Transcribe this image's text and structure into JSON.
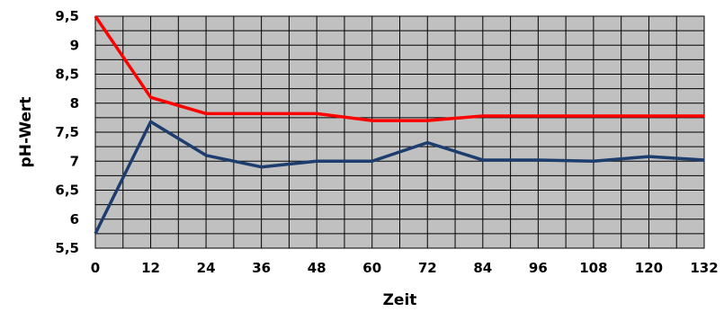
{
  "chart_data": {
    "type": "line",
    "x": [
      0,
      12,
      24,
      36,
      48,
      60,
      72,
      84,
      96,
      108,
      120,
      132
    ],
    "xticks": [
      "0",
      "12",
      "24",
      "36",
      "48",
      "60",
      "72",
      "84",
      "96",
      "108",
      "120",
      "132"
    ],
    "yticks": [
      "9,5",
      "9",
      "8,5",
      "8",
      "7,5",
      "7",
      "6,5",
      "6",
      "5,5"
    ],
    "xlabel": "Zeit",
    "ylabel": "pH-Wert",
    "xlim": [
      0,
      132
    ],
    "ylim": [
      5.5,
      9.5
    ],
    "grid": true,
    "legend": "none",
    "series": [
      {
        "color": "#ff0000",
        "x": [
          0,
          12,
          24,
          36,
          48,
          60,
          72,
          84,
          96,
          108,
          120,
          132
        ],
        "values": [
          9.5,
          8.1,
          7.82,
          7.82,
          7.82,
          7.7,
          7.7,
          7.78,
          7.78,
          7.78,
          7.78,
          7.78
        ]
      },
      {
        "color": "#1c3d6e",
        "x": [
          0,
          12,
          24,
          36,
          48,
          60,
          72,
          84,
          96,
          108,
          120,
          132
        ],
        "values": [
          5.75,
          7.68,
          7.1,
          6.9,
          7.0,
          7.0,
          7.32,
          7.02,
          7.02,
          7.0,
          7.08,
          7.02
        ]
      }
    ],
    "plot_background": "#c0c0c0",
    "grid_color": "#000000"
  }
}
